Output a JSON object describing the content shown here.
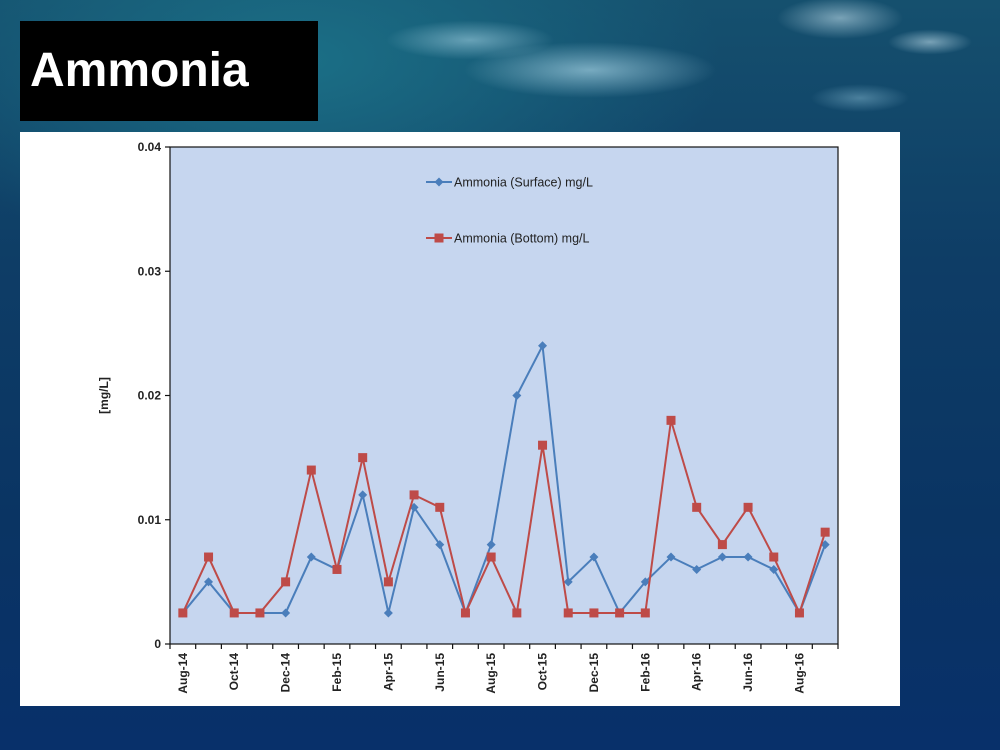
{
  "slide": {
    "title": "Ammonia"
  },
  "colors": {
    "title_bg": "#000000",
    "title_fg": "#ffffff",
    "plot_bg": "#c6d6ef",
    "surface": "#4a7ebb",
    "bottom": "#be4b48"
  },
  "chart_data": {
    "type": "line",
    "title": "",
    "xlabel": "",
    "ylabel": "[mg/L]",
    "ylim": [
      0,
      0.04
    ],
    "yticks": [
      "0",
      "0.01",
      "0.02",
      "0.03",
      "0.04"
    ],
    "ytick_values": [
      0,
      0.01,
      0.02,
      0.03,
      0.04
    ],
    "grid": false,
    "legend_position": "top-center",
    "categories": [
      "Aug-14",
      "Sep-14",
      "Oct-14",
      "Nov-14",
      "Dec-14",
      "Jan-15",
      "Feb-15",
      "Mar-15",
      "Apr-15",
      "May-15",
      "Jun-15",
      "Jul-15",
      "Aug-15",
      "Sep-15",
      "Oct-15",
      "Nov-15",
      "Dec-15",
      "Jan-16",
      "Feb-16",
      "Mar-16",
      "Apr-16",
      "May-16",
      "Jun-16",
      "Jul-16",
      "Aug-16",
      "Sep-16"
    ],
    "x_tick_labels": [
      {
        "index": 0,
        "label": "Aug-14"
      },
      {
        "index": 2,
        "label": "Oct-14"
      },
      {
        "index": 4,
        "label": "Dec-14"
      },
      {
        "index": 6,
        "label": "Feb-15"
      },
      {
        "index": 8,
        "label": "Apr-15"
      },
      {
        "index": 10,
        "label": "Jun-15"
      },
      {
        "index": 12,
        "label": "Aug-15"
      },
      {
        "index": 14,
        "label": "Oct-15"
      },
      {
        "index": 16,
        "label": "Dec-15"
      },
      {
        "index": 18,
        "label": "Feb-16"
      },
      {
        "index": 20,
        "label": "Apr-16"
      },
      {
        "index": 22,
        "label": "Jun-16"
      },
      {
        "index": 24,
        "label": "Aug-16"
      }
    ],
    "series": [
      {
        "name": "Ammonia (Surface) mg/L",
        "marker": "diamond",
        "values": [
          0.0025,
          0.005,
          0.0025,
          0.0025,
          0.0025,
          0.007,
          0.006,
          0.012,
          0.0025,
          0.011,
          0.008,
          0.0025,
          0.008,
          0.02,
          0.024,
          0.005,
          0.007,
          0.0025,
          0.005,
          0.007,
          0.006,
          0.007,
          0.007,
          0.006,
          0.0025,
          0.008
        ]
      },
      {
        "name": "Ammonia (Bottom) mg/L",
        "marker": "square",
        "values": [
          0.0025,
          0.007,
          0.0025,
          0.0025,
          0.005,
          0.014,
          0.006,
          0.015,
          0.005,
          0.012,
          0.011,
          0.0025,
          0.007,
          0.0025,
          0.016,
          0.0025,
          0.0025,
          0.0025,
          0.0025,
          0.018,
          0.011,
          0.008,
          0.011,
          0.007,
          0.0025,
          0.009
        ]
      }
    ]
  }
}
